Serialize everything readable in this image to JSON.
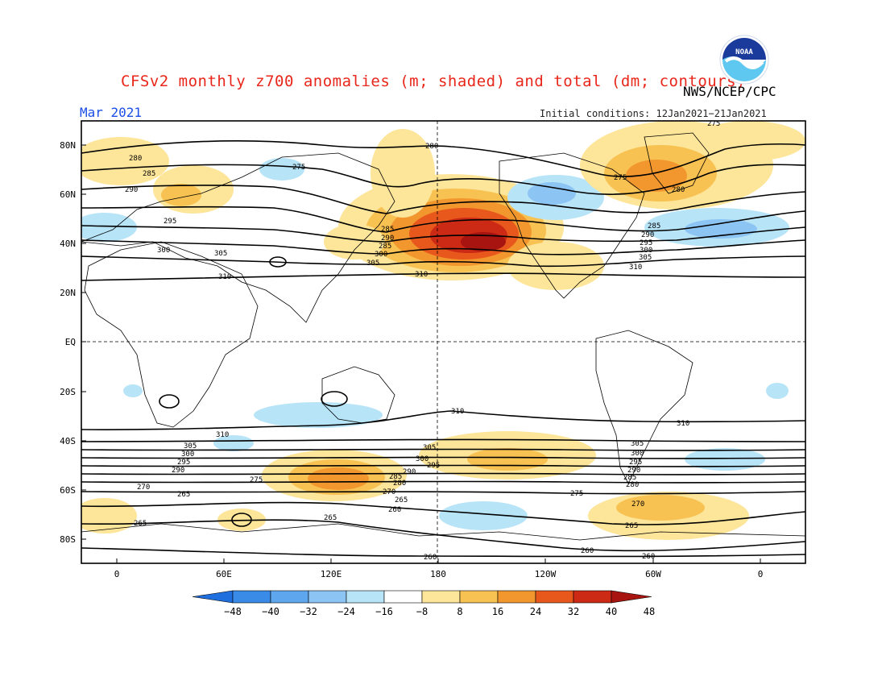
{
  "title": "CFSv2 monthly z700 anomalies (m; shaded) and total (dm; contours)",
  "agency": "NWS/NCEP/CPC",
  "month": "Mar 2021",
  "initial_conditions": "Initial conditions: 12Jan2021−21Jan2021",
  "logo_text": "NOAA",
  "lat_ticks": [
    "80N",
    "60N",
    "40N",
    "20N",
    "EQ",
    "20S",
    "40S",
    "60S",
    "80S"
  ],
  "lon_ticks": [
    "0",
    "60E",
    "120E",
    "180",
    "120W",
    "60W",
    "0"
  ],
  "colorbar": {
    "labels": [
      "−48",
      "−40",
      "−32",
      "−24",
      "−16",
      "−8",
      "8",
      "16",
      "24",
      "32",
      "40",
      "48"
    ],
    "colors": [
      "#1f6fde",
      "#3a8ae8",
      "#5ea6ee",
      "#8cc4f4",
      "#b8e4f8",
      "#ffffff",
      "#fde59a",
      "#f8c252",
      "#f2962e",
      "#e8581c",
      "#cc2a14",
      "#a81410"
    ]
  },
  "contour_labels": {
    "nh": [
      "275",
      "280",
      "285",
      "290",
      "295",
      "300",
      "305",
      "310"
    ],
    "sh": [
      "310",
      "305",
      "300",
      "295",
      "290",
      "285",
      "280",
      "275",
      "270",
      "265",
      "260"
    ]
  }
}
